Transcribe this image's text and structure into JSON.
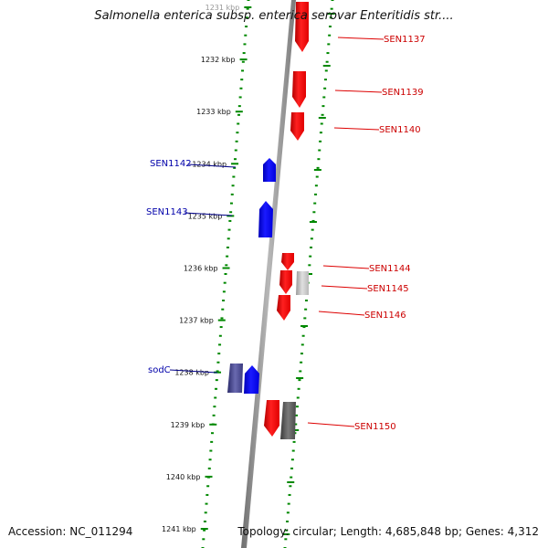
{
  "title": "Salmonella enterica subsp. enterica serovar Enteritidis str....",
  "footer": {
    "accession": "Accession: NC_011294",
    "summary": "Topology: circular; Length: 4,685,848 bp; Genes: 4,312"
  },
  "colors": {
    "forward_gene": "#0a0aff",
    "reverse_gene": "#ff0000",
    "gray_gene": "#b0b0b0",
    "dark_gene": "#555555",
    "backbone": "#888888",
    "tick": "#008800"
  },
  "ticks": [
    "1231 kbp",
    "1232 kbp",
    "1233 kbp",
    "1234 kbp",
    "1235 kbp",
    "1236 kbp",
    "1237 kbp",
    "1238 kbp",
    "1239 kbp",
    "1240 kbp",
    "1241 kbp"
  ],
  "genes": [
    {
      "label": "SEN1137",
      "strand": "reverse",
      "color": "red"
    },
    {
      "label": "SEN1139",
      "strand": "reverse",
      "color": "red"
    },
    {
      "label": "SEN1140",
      "strand": "reverse",
      "color": "red"
    },
    {
      "label": "SEN1142",
      "strand": "forward",
      "color": "blue"
    },
    {
      "label": "SEN1143",
      "strand": "forward",
      "color": "blue"
    },
    {
      "label": "SEN1144",
      "strand": "reverse",
      "color": "red"
    },
    {
      "label": "SEN1145",
      "strand": "reverse",
      "color": "red"
    },
    {
      "label": "SEN1146",
      "strand": "reverse",
      "color": "red"
    },
    {
      "label": "sodC",
      "strand": "forward",
      "color": "blue"
    },
    {
      "label": "SEN1150",
      "strand": "reverse",
      "color": "red"
    }
  ]
}
